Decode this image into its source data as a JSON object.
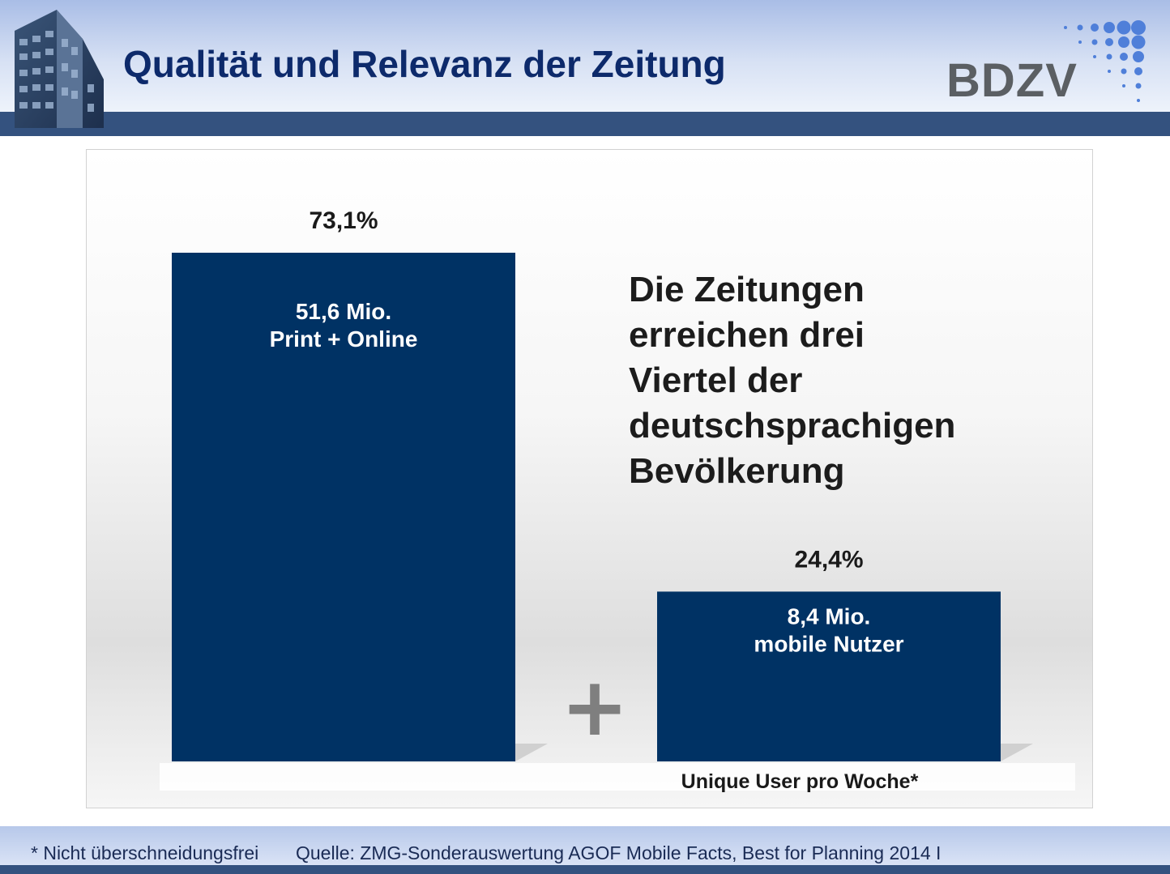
{
  "slide": {
    "title": "Qualität und Relevanz der Zeitung",
    "logo_text": "BDZV",
    "headline": "Die Zeitungen\nerreichen drei\nViertel der\ndeutschsprachigen\nBevölkerung",
    "footnote": "* Nicht überschneidungsfrei",
    "source": "Quelle: ZMG-Sonderauswertung AGOF Mobile Facts, Best for Planning 2014  I"
  },
  "colors": {
    "bar": "#003264",
    "title": "#0d2a6b",
    "header_band": "#34527f",
    "plus": "#7f7f7f"
  },
  "chart_data": {
    "type": "bar",
    "categories": [
      "Print + Online",
      "mobile Nutzer"
    ],
    "values": [
      73.1,
      24.4
    ],
    "value_labels": [
      "73,1%",
      "24,4%"
    ],
    "inner_labels": [
      [
        "51,6 Mio.",
        "Print + Online"
      ],
      [
        "8,4 Mio.",
        "mobile Nutzer"
      ]
    ],
    "separator": "+",
    "xlabel": "Unique User pro Woche*",
    "ylabel": "",
    "ylim": [
      0,
      73.1
    ],
    "grid": false,
    "legend": "none"
  }
}
